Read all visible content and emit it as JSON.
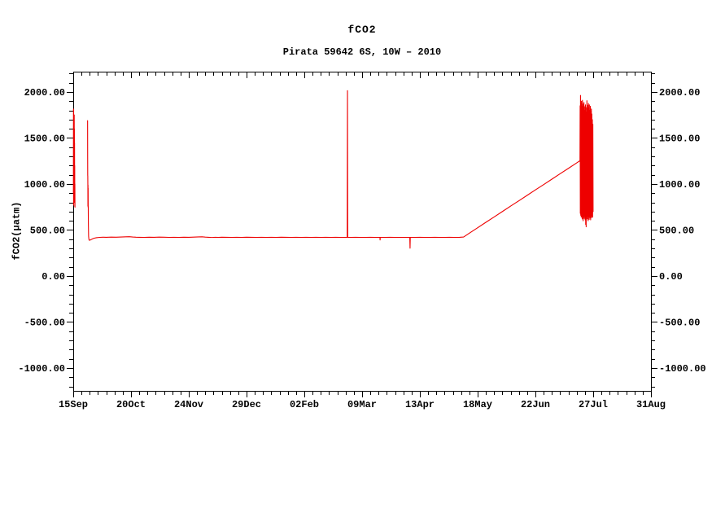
{
  "chart_data": {
    "type": "line",
    "title": "fCO2",
    "subtitle": "Pirata 59642 6S, 10W – 2010",
    "ylabel": "fCO2(µatm)",
    "colors": {
      "line": "#ee0000",
      "axis": "#000000",
      "background": "#ffffff",
      "text": "#000000"
    },
    "x_axis": {
      "range_days": [
        0,
        350
      ],
      "major_tick_days": [
        0,
        35,
        70,
        105,
        140,
        175,
        210,
        245,
        280,
        315,
        350
      ],
      "tick_labels": [
        "15Sep",
        "20Oct",
        "24Nov",
        "29Dec",
        "02Feb",
        "09Mar",
        "13Apr",
        "18May",
        "22Jun",
        "27Jul",
        "31Aug"
      ],
      "minor_step_days": 5
    },
    "y_axis": {
      "range": [
        -1248,
        2221
      ],
      "major_ticks": [
        2000,
        1500,
        1000,
        500,
        0,
        -500,
        -1000
      ],
      "tick_labels": [
        "2000.00",
        "1500.00",
        "1000.00",
        "500.00",
        "0.00",
        "-500.00",
        "-1000.00"
      ],
      "minor_step": 100,
      "mirrored_right_axis": true
    },
    "series": [
      {
        "name": "fCO2",
        "unit": "µatm",
        "color": "#ee0000",
        "segments": [
          [
            [
              0.1,
              900
            ],
            [
              0.15,
              1810
            ],
            [
              0.2,
              770
            ],
            [
              0.25,
              1815
            ],
            [
              0.3,
              860
            ],
            [
              0.35,
              1690
            ],
            [
              0.4,
              1500
            ],
            [
              0.45,
              800
            ],
            [
              0.5,
              1650
            ],
            [
              0.55,
              1000
            ],
            [
              0.6,
              1750
            ],
            [
              0.65,
              900
            ],
            [
              0.7,
              1600
            ],
            [
              0.75,
              980
            ],
            [
              0.8,
              1450
            ],
            [
              0.85,
              860
            ],
            [
              0.9,
              1200
            ],
            [
              0.95,
              755
            ],
            [
              1.0,
              1000
            ],
            [
              1.05,
              748
            ]
          ],
          [
            [
              8.7,
              1688
            ],
            [
              8.74,
              1300
            ],
            [
              8.78,
              1095
            ],
            [
              8.82,
              1085
            ],
            [
              8.86,
              985
            ],
            [
              8.9,
              760
            ],
            [
              8.94,
              988
            ],
            [
              8.98,
              750
            ],
            [
              9.02,
              955
            ],
            [
              9.06,
              765
            ],
            [
              9.1,
              748
            ],
            [
              9.18,
              555
            ],
            [
              9.3,
              432
            ],
            [
              9.5,
              398
            ],
            [
              9.8,
              388
            ],
            [
              10.5,
              393
            ],
            [
              11.5,
              402
            ],
            [
              12.5,
              410
            ],
            [
              14,
              416
            ],
            [
              16,
              420
            ],
            [
              18,
              422
            ],
            [
              20,
              421
            ],
            [
              23,
              423
            ],
            [
              26,
              422
            ],
            [
              29,
              424
            ],
            [
              32,
              426
            ],
            [
              34,
              427
            ],
            [
              36,
              424
            ],
            [
              38,
              422
            ],
            [
              40,
              421
            ],
            [
              43,
              420
            ],
            [
              46,
              422
            ],
            [
              49,
              421
            ],
            [
              52,
              423
            ],
            [
              55,
              422
            ],
            [
              58,
              420
            ],
            [
              61,
              421
            ],
            [
              64,
              420
            ],
            [
              67,
              422
            ],
            [
              70,
              421
            ],
            [
              73,
              423
            ],
            [
              76,
              425
            ],
            [
              78,
              426
            ],
            [
              80,
              423
            ],
            [
              82,
              421
            ],
            [
              84,
              419
            ],
            [
              86,
              421
            ],
            [
              88,
              420
            ],
            [
              90,
              422
            ],
            [
              93,
              421
            ],
            [
              96,
              420
            ],
            [
              99,
              421
            ],
            [
              102,
              420
            ],
            [
              105,
              422
            ],
            [
              108,
              421
            ],
            [
              111,
              420
            ],
            [
              114,
              421
            ],
            [
              117,
              420
            ],
            [
              120,
              421
            ],
            [
              123,
              420
            ],
            [
              126,
              422
            ],
            [
              129,
              421
            ],
            [
              132,
              420
            ],
            [
              135,
              421
            ],
            [
              138,
              420
            ],
            [
              141,
              421
            ],
            [
              144,
              420
            ],
            [
              147,
              421
            ],
            [
              150,
              420
            ],
            [
              153,
              421
            ],
            [
              156,
              420
            ],
            [
              159,
              421
            ],
            [
              162,
              420
            ],
            [
              165,
              420
            ],
            [
              166,
              421
            ],
            [
              166.15,
              2015
            ],
            [
              166.3,
              421
            ],
            [
              168,
              420
            ],
            [
              171,
              421
            ],
            [
              174,
              420
            ],
            [
              177,
              420
            ],
            [
              180,
              421
            ],
            [
              183,
              420
            ],
            [
              185.8,
              420
            ],
            [
              185.9,
              392
            ],
            [
              186,
              420
            ],
            [
              189,
              420
            ],
            [
              192,
              421
            ],
            [
              195,
              420
            ],
            [
              198,
              420
            ],
            [
              201,
              420
            ],
            [
              203.9,
              420
            ],
            [
              204.05,
              302
            ],
            [
              204.2,
              420
            ],
            [
              207,
              420
            ],
            [
              210,
              421
            ],
            [
              213,
              420
            ],
            [
              216,
              420
            ],
            [
              219,
              421
            ],
            [
              222,
              420
            ],
            [
              225,
              420
            ],
            [
              228,
              421
            ],
            [
              231,
              420
            ],
            [
              234,
              421
            ],
            [
              236.5,
              424
            ],
            [
              240,
              466
            ],
            [
              245,
              525
            ],
            [
              250,
              584
            ],
            [
              255,
              642
            ],
            [
              260,
              701
            ],
            [
              265,
              760
            ],
            [
              270,
              818
            ],
            [
              275,
              877
            ],
            [
              280,
              936
            ],
            [
              285,
              994
            ],
            [
              290,
              1053
            ],
            [
              295,
              1112
            ],
            [
              300,
              1170
            ],
            [
              305,
              1229
            ],
            [
              307,
              1253
            ],
            [
              307.1,
              1850
            ],
            [
              307.2,
              680
            ],
            [
              307.32,
              1963
            ],
            [
              307.45,
              660
            ],
            [
              307.6,
              1880
            ],
            [
              307.75,
              640
            ],
            [
              307.9,
              1900
            ],
            [
              308.05,
              650
            ],
            [
              308.2,
              1845
            ],
            [
              308.35,
              620
            ],
            [
              308.5,
              1910
            ],
            [
              308.65,
              645
            ],
            [
              308.8,
              1870
            ],
            [
              308.95,
              600
            ],
            [
              309.1,
              1855
            ],
            [
              309.25,
              640
            ],
            [
              309.4,
              1885
            ],
            [
              309.55,
              625
            ],
            [
              309.7,
              1800
            ],
            [
              309.85,
              650
            ],
            [
              310,
              1840
            ],
            [
              310.15,
              610
            ],
            [
              310.3,
              1860
            ],
            [
              310.45,
              560
            ],
            [
              310.6,
              1780
            ],
            [
              310.75,
              535
            ],
            [
              310.9,
              1830
            ],
            [
              311.05,
              640
            ],
            [
              311.2,
              1905
            ],
            [
              311.35,
              620
            ],
            [
              311.5,
              1855
            ],
            [
              311.65,
              648
            ],
            [
              311.8,
              1820
            ],
            [
              311.95,
              600
            ],
            [
              312.1,
              1875
            ],
            [
              312.25,
              640
            ],
            [
              312.4,
              1830
            ],
            [
              312.55,
              615
            ],
            [
              312.7,
              1860
            ],
            [
              312.85,
              645
            ],
            [
              313,
              1800
            ],
            [
              313.15,
              630
            ],
            [
              313.3,
              1845
            ],
            [
              313.45,
              610
            ],
            [
              313.6,
              1790
            ],
            [
              313.75,
              650
            ],
            [
              313.9,
              1815
            ],
            [
              314.05,
              635
            ],
            [
              314.2,
              1760
            ],
            [
              314.35,
              660
            ],
            [
              314.5,
              1700
            ],
            [
              314.65,
              640
            ],
            [
              314.8,
              1650
            ],
            [
              314.95,
              700
            ]
          ]
        ]
      }
    ]
  }
}
